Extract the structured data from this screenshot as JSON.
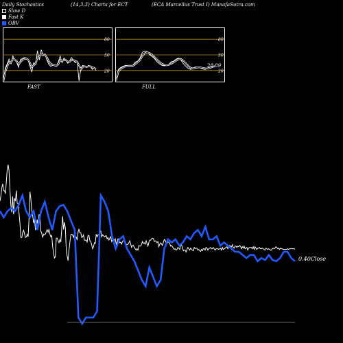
{
  "header": {
    "left": "Daily Stochastics",
    "middle": "(14,3,3) Charts for ECT",
    "right": "(ECA Marcellus Trust I) MunafaSutra.com"
  },
  "legend": [
    {
      "label": "Slow D",
      "swatch": "outline"
    },
    {
      "label": "Fast K",
      "swatch": "white"
    },
    {
      "label": "OBV",
      "swatch": "blue"
    }
  ],
  "colors": {
    "background": "#000000",
    "price_line": "#ffffff",
    "obv_line": "#1f5bff",
    "band": "#b8860b"
  },
  "chart_data": [
    {
      "type": "line",
      "title": "FAST",
      "ylim": [
        0,
        100
      ],
      "levels": [
        20,
        50,
        80
      ],
      "tick_labels": [
        "80",
        "50",
        "20"
      ],
      "series": [
        {
          "name": "Fast K",
          "values": [
            0,
            25,
            33,
            42,
            33,
            48,
            40,
            36,
            26,
            41,
            43,
            45,
            44,
            40,
            29,
            17,
            35,
            31,
            58,
            40,
            60,
            48,
            52,
            40,
            32,
            28,
            30,
            30,
            28,
            36,
            48,
            35,
            44,
            40,
            34,
            38,
            45,
            40,
            35,
            38,
            0,
            25,
            30,
            28,
            26,
            30,
            28,
            22,
            26,
            20
          ]
        },
        {
          "name": "Slow D",
          "values": [
            0,
            18,
            28,
            36,
            35,
            42,
            41,
            38,
            32,
            36,
            40,
            42,
            43,
            41,
            35,
            27,
            30,
            33,
            45,
            46,
            52,
            50,
            50,
            45,
            38,
            33,
            31,
            30,
            29,
            32,
            40,
            38,
            40,
            40,
            37,
            37,
            40,
            40,
            38,
            37,
            30,
            22,
            27,
            28,
            27,
            28,
            28,
            26,
            25,
            23
          ]
        }
      ]
    },
    {
      "type": "line",
      "title": "FULL",
      "ylim": [
        0,
        100
      ],
      "levels": [
        20,
        50,
        80
      ],
      "tick_labels": [
        "80",
        "50",
        "20"
      ],
      "value_label": "28.89",
      "series": [
        {
          "name": "Full K",
          "values": [
            0,
            22,
            26,
            28,
            30,
            29,
            28,
            30,
            36,
            38,
            44,
            55,
            57,
            56,
            50,
            47,
            43,
            37,
            33,
            30,
            29,
            30,
            32,
            37,
            38,
            42,
            44,
            40,
            33,
            28,
            24,
            22,
            24,
            27,
            26,
            25,
            23,
            22,
            24,
            26,
            28,
            29
          ]
        },
        {
          "name": "Full D",
          "values": [
            0,
            18,
            23,
            26,
            28,
            29,
            29,
            29,
            32,
            36,
            40,
            48,
            53,
            55,
            53,
            50,
            46,
            41,
            37,
            33,
            31,
            30,
            31,
            33,
            36,
            39,
            42,
            42,
            39,
            34,
            29,
            25,
            24,
            25,
            26,
            26,
            25,
            24,
            24,
            25,
            27,
            28
          ]
        }
      ]
    },
    {
      "type": "line",
      "series": [
        {
          "name": "Close",
          "values": [
            7.58,
            7.66,
            7.78,
            7.84,
            7.74,
            7.74,
            7.69,
            7.88,
            8.07,
            8.13,
            8.03,
            7.73,
            7.51,
            7.41,
            7.65,
            7.38,
            7.62,
            7.58,
            7.74,
            7.55,
            7.54,
            7.39,
            7.24,
            7.03,
            7.03,
            7.11,
            7.14,
            7.09,
            7.03,
            7.04,
            7.08,
            7.04,
            7.31,
            7.72,
            7.61,
            7.44,
            7.36,
            7.25,
            7.31,
            7.15,
            7.17,
            7.3,
            7.2,
            7.38,
            7.34,
            7.13,
            7.09,
            7.03,
            7.08,
            7.07,
            7.08,
            7.12,
            7.15,
            7.11,
            7.15,
            7.08,
            7.04,
            7.06,
            6.9,
            6.79,
            6.72,
            6.74,
            7.02,
            7.02,
            6.98,
            6.95,
            7.0,
            6.96,
            7.16,
            7.35,
            7.15,
            7.26,
            7.17,
            6.84,
            6.75,
            6.68,
            6.84,
            6.96,
            7.07,
            7.08,
            7.07,
            7.03,
            7.09,
            7.04,
            7.04,
            6.99,
            7.11,
            7.16,
            7.1,
            7.1,
            7.03,
            7.04,
            7.07,
            6.99,
            6.99,
            6.99,
            6.96,
            7.06,
            7.06,
            6.98,
            6.97,
            6.92,
            6.86,
            6.89,
            6.95,
            6.94,
            7.08,
            7.04,
            7.07,
            7.07,
            7.13,
            7.13,
            7.04,
            7.07,
            7.06,
            7.04,
            7.05,
            7.06,
            7.01,
            7.03,
            6.99,
            7.02,
            7.04,
            6.97,
            6.99,
            6.95,
            6.99,
            7.01,
            6.93,
            6.96,
            7.01,
            6.99,
            6.95,
            6.96,
            6.93,
            6.97,
            6.98,
            6.98,
            6.94,
            6.93,
            6.92,
            6.93,
            6.95,
            6.98,
            6.93,
            6.88,
            6.91,
            6.91,
            6.88,
            6.86,
            6.84,
            6.86,
            6.84,
            6.91,
            6.9,
            6.9,
            6.93,
            6.97,
            6.94,
            6.95,
            6.93,
            6.98,
            6.94,
            6.9,
            6.96,
            6.99,
            6.99,
            7.01,
            7.02,
            7.01,
            6.97,
            6.98,
            6.97,
            6.95,
            6.97,
            6.89,
            6.93,
            6.95,
            6.93,
            6.91,
            6.96,
            7.0,
            6.99,
            6.94,
            6.94,
            6.96,
            6.96,
            6.94,
            6.9,
            6.91,
            6.89,
            6.87,
            6.85,
            6.86,
            6.84,
            6.85,
            6.88,
            6.87,
            6.85,
            6.91,
            6.92,
            6.88,
            6.83,
            6.84,
            6.84,
            6.81,
            6.85,
            6.88,
            6.86,
            6.84,
            6.87,
            6.85,
            6.84,
            6.83,
            6.88,
            6.86,
            6.87,
            6.87,
            6.84,
            6.85,
            6.83,
            6.82,
            6.85,
            6.83,
            6.86,
            6.86,
            6.84,
            6.88,
            6.87,
            6.84,
            6.86,
            6.87,
            6.88,
            6.86,
            6.86,
            6.88,
            6.86,
            6.84,
            6.86,
            6.86,
            6.86,
            6.85,
            6.86,
            6.87,
            6.84,
            6.88,
            6.85,
            6.86,
            6.87,
            6.88,
            6.89,
            6.86,
            6.89,
            6.91,
            6.9,
            6.89,
            6.92,
            6.88,
            6.87,
            6.9,
            6.9,
            6.88,
            6.9,
            6.89,
            6.91,
            6.9,
            6.86,
            6.89,
            6.87,
            6.9,
            6.86,
            6.87,
            6.88,
            6.84,
            6.87,
            6.88,
            6.88,
            6.88,
            6.86,
            6.89,
            6.85,
            6.89,
            6.87,
            6.85,
            6.87,
            6.87,
            6.88,
            6.86,
            6.86,
            6.87,
            6.86,
            6.85,
            6.84,
            6.87,
            6.86,
            6.85,
            6.86,
            6.85,
            6.84,
            6.84,
            6.86,
            6.87,
            6.86,
            6.87,
            6.89,
            6.88,
            6.86,
            6.87,
            6.85,
            6.87,
            6.86,
            6.86,
            6.85,
            6.85,
            6.85,
            6.85,
            6.85,
            6.86,
            6.85,
            6.86,
            6.86,
            6.86,
            6.86,
            6.86,
            6.86,
            6.85
          ]
        },
        {
          "name": "OBV",
          "values": [
            0
          ]
        }
      ],
      "price_label": "0.40",
      "price_label_suffix": "Close"
    }
  ]
}
